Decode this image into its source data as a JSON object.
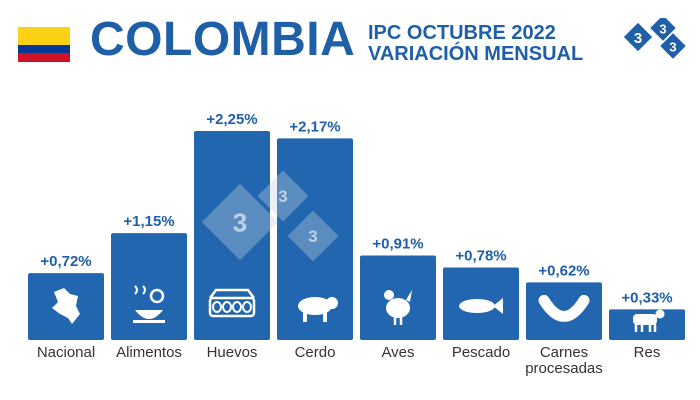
{
  "header": {
    "country": "COLOMBIA",
    "subtitle_line1": "IPC OCTUBRE 2022",
    "subtitle_line2": "VARIACIÓN MENSUAL",
    "logo_digits": [
      "3",
      "3",
      "3"
    ]
  },
  "colors": {
    "bar": "#2166ae",
    "value_text": "#1f5fa8",
    "flag_yellow": "#fcd116",
    "flag_blue": "#003893",
    "flag_red": "#ce1126"
  },
  "chart_data": {
    "type": "bar",
    "title": "",
    "xlabel": "",
    "ylabel": "",
    "categories": [
      "Nacional",
      "Alimentos",
      "Huevos",
      "Cerdo",
      "Aves",
      "Pescado",
      "Carnes procesadas",
      "Res"
    ],
    "category_lines": [
      [
        "Nacional"
      ],
      [
        "Alimentos"
      ],
      [
        "Huevos"
      ],
      [
        "Cerdo"
      ],
      [
        "Aves"
      ],
      [
        "Pescado"
      ],
      [
        "Carnes",
        "procesadas"
      ],
      [
        "Res"
      ]
    ],
    "values": [
      0.72,
      1.15,
      2.25,
      2.17,
      0.91,
      0.78,
      0.62,
      0.33
    ],
    "value_labels": [
      "+0,72%",
      "+1,15%",
      "+2,25%",
      "+2,17%",
      "+0,91%",
      "+0,78%",
      "+0,62%",
      "+0,33%"
    ],
    "icons": [
      "colombia-map-icon",
      "food-dishes-icon",
      "egg-carton-icon",
      "pig-icon",
      "chicken-icon",
      "fish-icon",
      "sausage-icon",
      "cow-icon"
    ],
    "ylim": [
      0,
      2.25
    ],
    "grid": false,
    "legend": "none"
  }
}
